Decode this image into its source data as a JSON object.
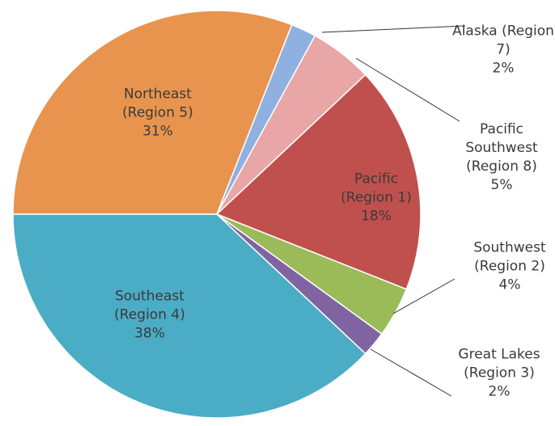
{
  "chart_data": {
    "type": "pie",
    "categories": [
      "Northeast (Region 5)",
      "Alaska (Region 7)",
      "Pacific Southwest (Region 8)",
      "Pacific (Region 1)",
      "Southwest (Region 2)",
      "Great Lakes (Region 3)",
      "Southeast (Region 4)"
    ],
    "values": [
      31,
      2,
      5,
      18,
      4,
      2,
      38
    ],
    "value_labels": [
      "31%",
      "2%",
      "5%",
      "18%",
      "4%",
      "2%",
      "38%"
    ],
    "colors": [
      "#e8944e",
      "#8fb0e0",
      "#e8a6a6",
      "#c0504d",
      "#9bbb59",
      "#8064a2",
      "#4bacc6"
    ]
  }
}
